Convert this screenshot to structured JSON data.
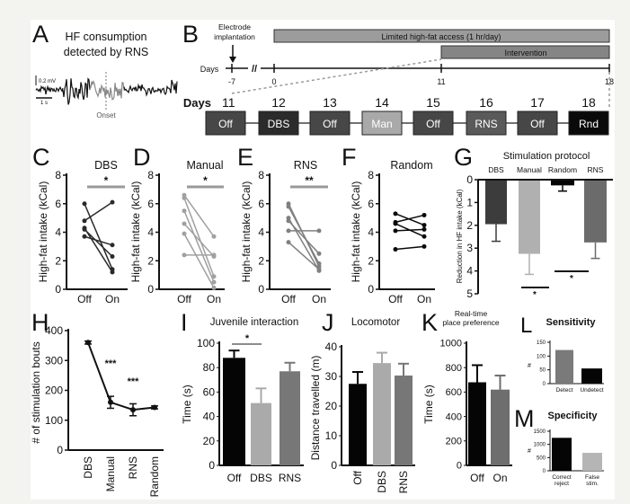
{
  "panelA": {
    "label": "A",
    "title_lines": [
      "HF consumption",
      "detected by RNS"
    ],
    "scale_voltage": "0.2 mV",
    "scale_time": "1 s",
    "onset_label": "Onset"
  },
  "panelB": {
    "label": "B",
    "electrode_lines": [
      "Electrode",
      "implantation"
    ],
    "hf_access_label": "Limited high-fat access (1 hr/day)",
    "intervention_label": "Intervention",
    "days_label": "Days",
    "timeline_ticks": [
      "-7",
      "0",
      "11",
      "18"
    ],
    "break_mark": "//",
    "schedule": [
      {
        "day": "11",
        "condition": "Off"
      },
      {
        "day": "12",
        "condition": "DBS"
      },
      {
        "day": "13",
        "condition": "Off"
      },
      {
        "day": "14",
        "condition": "Man"
      },
      {
        "day": "15",
        "condition": "Off"
      },
      {
        "day": "16",
        "condition": "RNS"
      },
      {
        "day": "17",
        "condition": "Off"
      },
      {
        "day": "18",
        "condition": "Rnd"
      }
    ],
    "colors": {
      "Off": "#474747",
      "DBS": "#2b2b2b",
      "Man": "#a9a9a9",
      "RNS": "#5a5a5a",
      "Rnd": "#0a0a0a",
      "bar_top": "#9c9c9c",
      "bar_intervention": "#858585"
    }
  },
  "chart_data": [
    {
      "panel": "C",
      "type": "line",
      "title": "DBS",
      "ylabel": "High-fat intake (kCal)",
      "categories": [
        "Off",
        "On"
      ],
      "ylim": [
        0,
        8
      ],
      "yticks": [
        "0",
        "2",
        "4",
        "6",
        "8"
      ],
      "significance": "*",
      "color": "#2a2a2a",
      "series": [
        {
          "name": "subject 1",
          "values": [
            6.0,
            1.4
          ]
        },
        {
          "name": "subject 2",
          "values": [
            4.8,
            6.1
          ]
        },
        {
          "name": "subject 3",
          "values": [
            4.3,
            1.2
          ]
        },
        {
          "name": "subject 4",
          "values": [
            4.2,
            2.3
          ]
        },
        {
          "name": "subject 5",
          "values": [
            3.7,
            3.1
          ]
        }
      ]
    },
    {
      "panel": "D",
      "type": "line",
      "title": "Manual",
      "ylabel": "High-fat intake (kCal)",
      "categories": [
        "Off",
        "On"
      ],
      "ylim": [
        0,
        8
      ],
      "yticks": [
        "0",
        "2",
        "4",
        "6",
        "8"
      ],
      "significance": "*",
      "color": "#a0a0a0",
      "series": [
        {
          "name": "subject 1",
          "values": [
            6.6,
            3.7
          ]
        },
        {
          "name": "subject 2",
          "values": [
            6.4,
            0.9
          ]
        },
        {
          "name": "subject 3",
          "values": [
            5.5,
            0.5
          ]
        },
        {
          "name": "subject 4",
          "values": [
            4.6,
            2.3
          ]
        },
        {
          "name": "subject 5",
          "values": [
            3.9,
            0.1
          ]
        },
        {
          "name": "subject 6",
          "values": [
            2.4,
            2.4
          ]
        }
      ]
    },
    {
      "panel": "E",
      "type": "line",
      "title": "RNS",
      "ylabel": "High-fat intake (kCal)",
      "categories": [
        "Off",
        "On"
      ],
      "ylim": [
        0,
        8
      ],
      "yticks": [
        "0",
        "2",
        "4",
        "6",
        "8"
      ],
      "significance": "**",
      "color": "#808080",
      "series": [
        {
          "name": "subject 1",
          "values": [
            6.0,
            1.6
          ]
        },
        {
          "name": "subject 2",
          "values": [
            5.8,
            1.8
          ]
        },
        {
          "name": "subject 3",
          "values": [
            5.0,
            1.3
          ]
        },
        {
          "name": "subject 4",
          "values": [
            4.8,
            2.5
          ]
        },
        {
          "name": "subject 5",
          "values": [
            4.1,
            4.1
          ]
        },
        {
          "name": "subject 6",
          "values": [
            3.3,
            1.4
          ]
        }
      ]
    },
    {
      "panel": "F",
      "type": "line",
      "title": "Random",
      "ylabel": "High-fat intake (kCal)",
      "categories": [
        "Off",
        "On"
      ],
      "ylim": [
        0,
        8
      ],
      "yticks": [
        "0",
        "2",
        "4",
        "6",
        "8"
      ],
      "significance": "",
      "color": "#0a0a0a",
      "series": [
        {
          "name": "subject 1",
          "values": [
            5.3,
            4.5
          ]
        },
        {
          "name": "subject 2",
          "values": [
            4.7,
            5.2
          ]
        },
        {
          "name": "subject 3",
          "values": [
            4.6,
            3.7
          ]
        },
        {
          "name": "subject 4",
          "values": [
            4.1,
            4.2
          ]
        },
        {
          "name": "subject 5",
          "values": [
            2.8,
            3.0
          ]
        }
      ]
    },
    {
      "panel": "G",
      "type": "bar",
      "title": "Stimulation protocol",
      "ylabel": "Reduction in HF intake (kCal)",
      "categories": [
        "DBS",
        "Manual",
        "Random",
        "RNS"
      ],
      "values": [
        1.95,
        3.25,
        0.25,
        2.75
      ],
      "errors": [
        0.75,
        0.9,
        0.25,
        0.7
      ],
      "ylim": [
        0,
        5
      ],
      "yticks": [
        "0",
        "1",
        "2",
        "3",
        "4",
        "5"
      ],
      "colors": [
        "#3c3c3c",
        "#b0b0b0",
        "#050505",
        "#6b6b6b"
      ],
      "significance": [
        "*",
        "*"
      ]
    },
    {
      "panel": "H",
      "type": "line",
      "title": "",
      "ylabel": "# of stimulation bouts",
      "categories": [
        "DBS",
        "Manual",
        "RNS",
        "Random"
      ],
      "values": [
        360,
        160,
        135,
        143
      ],
      "errors": [
        5,
        20,
        20,
        5
      ],
      "ylim": [
        0,
        400
      ],
      "yticks": [
        "0",
        "100",
        "200",
        "300",
        "400"
      ],
      "significance": [
        "***",
        "***"
      ]
    },
    {
      "panel": "I",
      "type": "bar",
      "title": "Juvenile interaction",
      "ylabel": "Time (s)",
      "categories": [
        "Off",
        "DBS",
        "RNS"
      ],
      "values": [
        88,
        51,
        77
      ],
      "errors": [
        6,
        12,
        7
      ],
      "ylim": [
        0,
        100
      ],
      "yticks": [
        "0",
        "20",
        "40",
        "60",
        "80",
        "100"
      ],
      "colors": [
        "#050505",
        "#aaaaaa",
        "#777777"
      ],
      "significance": [
        "*"
      ]
    },
    {
      "panel": "J",
      "type": "bar",
      "title": "Locomotor",
      "ylabel": "Distance travelled (m)",
      "categories": [
        "Off",
        "DBS",
        "RNS"
      ],
      "values": [
        27.5,
        34.5,
        30.3
      ],
      "errors": [
        4,
        3.5,
        4
      ],
      "ylim": [
        0,
        40
      ],
      "yticks": [
        "0",
        "10",
        "20",
        "30",
        "40"
      ],
      "colors": [
        "#050505",
        "#aaaaaa",
        "#777777"
      ]
    },
    {
      "panel": "K",
      "type": "bar",
      "title_lines": [
        "Real-time",
        "place preference"
      ],
      "ylabel": "Time (s)",
      "categories": [
        "Off",
        "On"
      ],
      "values": [
        680,
        620
      ],
      "errors": [
        140,
        115
      ],
      "ylim": [
        0,
        1000
      ],
      "yticks": [
        "0",
        "200",
        "400",
        "600",
        "800",
        "1000"
      ],
      "colors": [
        "#050505",
        "#6e6e6e"
      ]
    },
    {
      "panel": "L",
      "type": "bar",
      "title": "Sensitivity",
      "ylabel": "#",
      "categories": [
        "Detect",
        "Undetect"
      ],
      "values": [
        122,
        55
      ],
      "ylim": [
        0,
        150
      ],
      "yticks": [
        "0",
        "50",
        "100",
        "150"
      ],
      "colors": [
        "#7a7a7a",
        "#050505"
      ]
    },
    {
      "panel": "M",
      "type": "bar",
      "title": "Specificity",
      "ylabel": "#",
      "category_lines": [
        [
          "Correct",
          "reject"
        ],
        [
          "False",
          "stim."
        ]
      ],
      "values": [
        1250,
        680
      ],
      "ylim": [
        0,
        1500
      ],
      "yticks": [
        "0",
        "500",
        "1000",
        "1500"
      ],
      "colors": [
        "#050505",
        "#b5b5b5"
      ]
    }
  ]
}
